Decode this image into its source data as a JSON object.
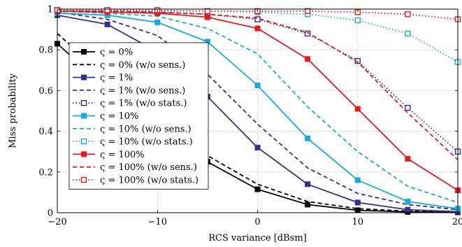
{
  "chart_data": {
    "type": "line",
    "title": "",
    "xlabel": "RCS variance [dBsm]",
    "ylabel": "Miss probability",
    "xlim": [
      -20,
      20
    ],
    "ylim": [
      0,
      1
    ],
    "x_ticks": [
      -20,
      -10,
      0,
      10,
      20
    ],
    "y_ticks": [
      0,
      0.2,
      0.4,
      0.6,
      0.8,
      1
    ],
    "x_tick_labels": [
      "−20",
      "−10",
      "0",
      "10",
      "20"
    ],
    "y_tick_labels": [
      "0",
      "0.2",
      "0.4",
      "0.6",
      "0.8",
      "1"
    ],
    "grid": true,
    "legend_position": "left",
    "x": [
      -20,
      -15,
      -10,
      -5,
      0,
      5,
      10,
      15,
      20
    ],
    "series": [
      {
        "name": "ς = 0%",
        "color": "#000000",
        "dash": "solid",
        "marker": "filled-square",
        "values": [
          0.83,
          0.61,
          0.42,
          0.25,
          0.115,
          0.04,
          0.012,
          0.004,
          0.002
        ]
      },
      {
        "name": "ς = 0% (w/o sens.)",
        "color": "#000000",
        "dash": "dashed",
        "marker": "none",
        "values": [
          0.88,
          0.66,
          0.46,
          0.28,
          0.14,
          0.055,
          0.02,
          0.008,
          0.003
        ]
      },
      {
        "name": "ς = 1%",
        "color": "#2e3192",
        "dash": "solid",
        "marker": "filled-square",
        "values": [
          0.97,
          0.925,
          0.79,
          0.57,
          0.32,
          0.14,
          0.05,
          0.015,
          0.005
        ]
      },
      {
        "name": "ς = 1% (w/o sens.)",
        "color": "#2e3192",
        "dash": "dashed",
        "marker": "none",
        "values": [
          0.985,
          0.95,
          0.87,
          0.68,
          0.435,
          0.22,
          0.095,
          0.04,
          0.015
        ]
      },
      {
        "name": "ς = 1% (w/o stats.)",
        "color": "#2e3192",
        "dash": "dotted",
        "marker": "open-square",
        "values": [
          0.995,
          0.99,
          0.985,
          0.975,
          0.95,
          0.88,
          0.745,
          0.515,
          0.3
        ]
      },
      {
        "name": "ς = 10%",
        "color": "#17a9e1",
        "dash": "solid",
        "marker": "filled-square",
        "values": [
          0.98,
          0.97,
          0.935,
          0.84,
          0.625,
          0.365,
          0.16,
          0.055,
          0.02
        ]
      },
      {
        "name": "ς = 10% (w/o sens.)",
        "color": "#17a9e1",
        "dash": "dashed",
        "marker": "none",
        "values": [
          0.99,
          0.98,
          0.965,
          0.905,
          0.78,
          0.52,
          0.3,
          0.13,
          0.05
        ]
      },
      {
        "name": "ς = 10% (w/o stats.)",
        "color": "#17a9e1",
        "dash": "dotted",
        "marker": "open-square",
        "values": [
          0.995,
          0.995,
          0.99,
          0.99,
          0.985,
          0.975,
          0.945,
          0.88,
          0.74
        ]
      },
      {
        "name": "ς = 100%",
        "color": "#e41a1c",
        "dash": "solid",
        "marker": "filled-square",
        "values": [
          0.99,
          0.985,
          0.98,
          0.96,
          0.905,
          0.755,
          0.51,
          0.265,
          0.11
        ]
      },
      {
        "name": "ς = 100% (w/o sens.)",
        "color": "#e41a1c",
        "dash": "dashed",
        "marker": "none",
        "values": [
          0.99,
          0.99,
          0.985,
          0.975,
          0.955,
          0.885,
          0.74,
          0.49,
          0.26
        ]
      },
      {
        "name": "ς = 100% (w/o stats.)",
        "color": "#e41a1c",
        "dash": "dotted",
        "marker": "open-square",
        "values": [
          0.995,
          0.995,
          0.995,
          0.99,
          0.99,
          0.99,
          0.985,
          0.975,
          0.95
        ]
      }
    ]
  }
}
